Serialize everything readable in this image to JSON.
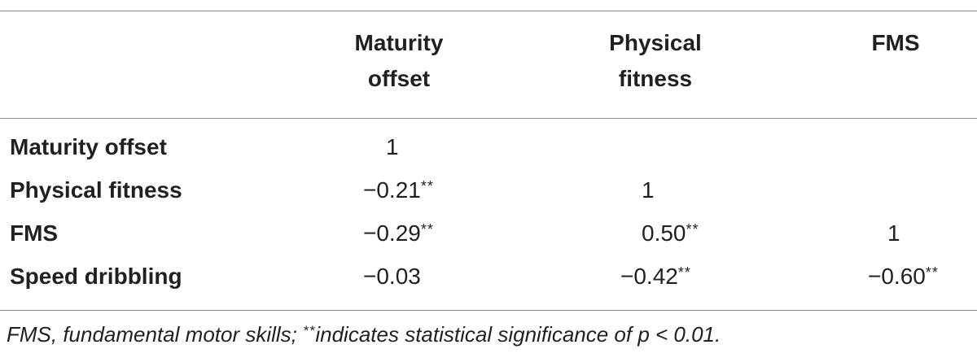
{
  "table": {
    "columns": [
      {
        "line1": "Maturity",
        "line2": "offset"
      },
      {
        "line1": "Physical",
        "line2": "fitness"
      },
      {
        "line1": "FMS",
        "line2": ""
      }
    ],
    "rows": [
      {
        "label": "Maturity offset",
        "values": [
          {
            "v": "1",
            "sig": ""
          },
          {
            "v": "",
            "sig": ""
          },
          {
            "v": "",
            "sig": ""
          }
        ]
      },
      {
        "label": "Physical fitness",
        "values": [
          {
            "v": "−0.21",
            "sig": "**"
          },
          {
            "v": "1",
            "sig": ""
          },
          {
            "v": "",
            "sig": ""
          }
        ]
      },
      {
        "label": "FMS",
        "values": [
          {
            "v": "−0.29",
            "sig": "**"
          },
          {
            "v": "0.50",
            "sig": "**"
          },
          {
            "v": "1",
            "sig": ""
          }
        ]
      },
      {
        "label": "Speed dribbling",
        "values": [
          {
            "v": "−0.03",
            "sig": ""
          },
          {
            "v": "−0.42",
            "sig": "**"
          },
          {
            "v": "−0.60",
            "sig": "**"
          }
        ]
      }
    ]
  },
  "footnote": {
    "part1": "FMS, fundamental motor skills; ",
    "sig": "**",
    "part2": "indicates statistical significance of p < 0.01."
  }
}
